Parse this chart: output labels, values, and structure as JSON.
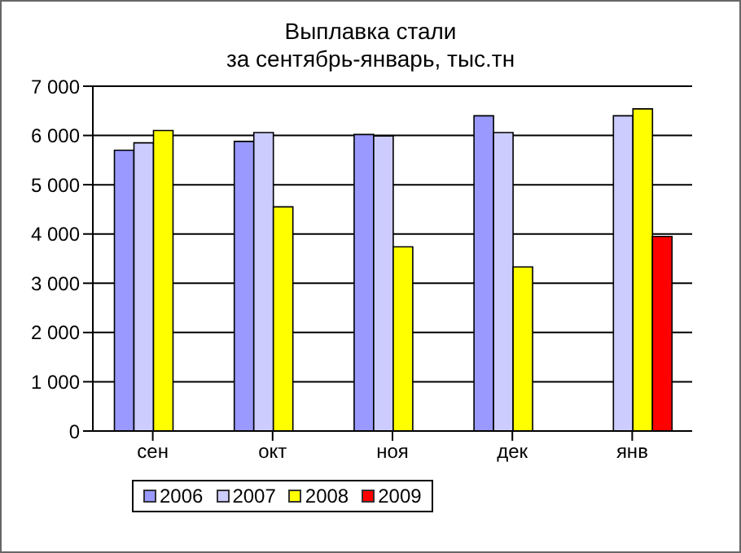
{
  "chart_data": {
    "type": "bar",
    "title": "Выплавка стали",
    "subtitle": "за сентябрь-январь, тыс.тн",
    "categories": [
      "сен",
      "окт",
      "ноя",
      "дек",
      "янв"
    ],
    "series": [
      {
        "name": "2006",
        "color": "#9999ff",
        "values": [
          5700,
          5880,
          6020,
          6400,
          null
        ]
      },
      {
        "name": "2007",
        "color": "#ccccff",
        "values": [
          5850,
          6060,
          5990,
          6060,
          6400
        ]
      },
      {
        "name": "2008",
        "color": "#ffff00",
        "values": [
          6100,
          4550,
          3740,
          3330,
          6540
        ]
      },
      {
        "name": "2009",
        "color": "#ff0000",
        "values": [
          null,
          null,
          null,
          null,
          3950
        ]
      }
    ],
    "ylim": [
      0,
      7000
    ],
    "yticks": [
      {
        "value": 0,
        "label": "0"
      },
      {
        "value": 1000,
        "label": "1 000"
      },
      {
        "value": 2000,
        "label": "2 000"
      },
      {
        "value": 3000,
        "label": "3 000"
      },
      {
        "value": 4000,
        "label": "4 000"
      },
      {
        "value": 5000,
        "label": "5 000"
      },
      {
        "value": 6000,
        "label": "6 000"
      },
      {
        "value": 7000,
        "label": "7 000"
      }
    ],
    "grid": "y",
    "legend": "bottom"
  }
}
